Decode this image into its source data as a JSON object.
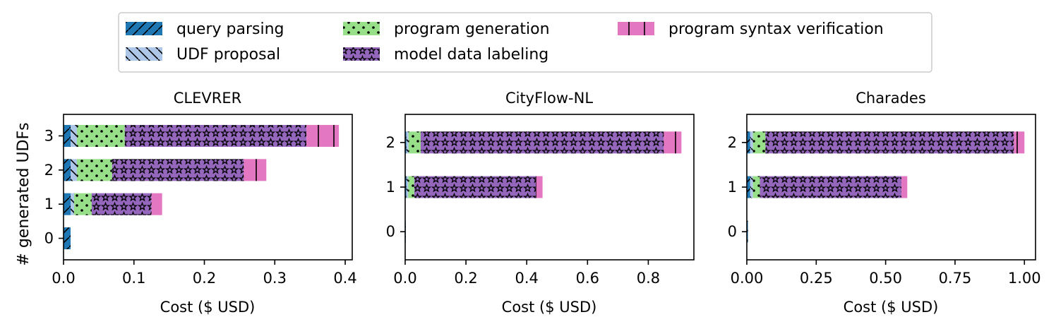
{
  "legend": {
    "items": [
      {
        "key": "query_parsing",
        "label": "query parsing"
      },
      {
        "key": "udf_proposal",
        "label": "UDF proposal"
      },
      {
        "key": "program_generation",
        "label": "program generation"
      },
      {
        "key": "model_data_labeling",
        "label": "model data labeling"
      },
      {
        "key": "program_syntax_verification",
        "label": "program syntax verification"
      }
    ]
  },
  "colors": {
    "query_parsing": "#1f77b4",
    "udf_proposal": "#aec7e8",
    "program_generation": "#98df8a",
    "model_data_labeling": "#9467bd",
    "program_syntax_verification": "#e377c2"
  },
  "patterns": {
    "query_parsing": "slash",
    "udf_proposal": "backslash",
    "program_generation": "dots",
    "model_data_labeling": "stars",
    "program_syntax_verification": "vertical-bar"
  },
  "shared": {
    "ylabel": "# generated UDFs"
  },
  "chart_data": [
    {
      "type": "bar",
      "orientation": "horizontal",
      "stacked": true,
      "title": "CLEVRER",
      "xlabel": "Cost ($ USD)",
      "ylabel": "# generated UDFs",
      "xlim": [
        0,
        0.41
      ],
      "xticks": [
        0,
        0.1,
        0.2,
        0.3,
        0.4
      ],
      "xtick_labels": [
        "0.0",
        "0.1",
        "0.2",
        "0.3",
        "0.4"
      ],
      "categories": [
        "0",
        "1",
        "2",
        "3"
      ],
      "series": [
        {
          "key": "query_parsing",
          "values": [
            0.01,
            0.01,
            0.01,
            0.01
          ]
        },
        {
          "key": "udf_proposal",
          "values": [
            0.0,
            0.005,
            0.009,
            0.009
          ]
        },
        {
          "key": "program_generation",
          "values": [
            0.0,
            0.025,
            0.05,
            0.068
          ]
        },
        {
          "key": "model_data_labeling",
          "values": [
            0.0,
            0.085,
            0.187,
            0.258
          ]
        },
        {
          "key": "program_syntax_verification",
          "values": [
            0.0,
            0.015,
            0.032,
            0.046
          ]
        }
      ]
    },
    {
      "type": "bar",
      "orientation": "horizontal",
      "stacked": true,
      "title": "CityFlow-NL",
      "xlabel": "Cost ($ USD)",
      "ylabel": "",
      "xlim": [
        0,
        0.95
      ],
      "xticks": [
        0,
        0.2,
        0.4,
        0.6,
        0.8
      ],
      "xtick_labels": [
        "0.0",
        "0.2",
        "0.4",
        "0.6",
        "0.8"
      ],
      "categories": [
        "0",
        "1",
        "2"
      ],
      "series": [
        {
          "key": "query_parsing",
          "values": [
            0.002,
            0.004,
            0.004
          ]
        },
        {
          "key": "udf_proposal",
          "values": [
            0.0,
            0.006,
            0.007
          ]
        },
        {
          "key": "program_generation",
          "values": [
            0.0,
            0.02,
            0.04
          ]
        },
        {
          "key": "model_data_labeling",
          "values": [
            0.0,
            0.4,
            0.8
          ]
        },
        {
          "key": "program_syntax_verification",
          "values": [
            0.0,
            0.022,
            0.058
          ]
        }
      ]
    },
    {
      "type": "bar",
      "orientation": "horizontal",
      "stacked": true,
      "title": "Charades",
      "xlabel": "Cost ($ USD)",
      "ylabel": "",
      "xlim": [
        0,
        1.04
      ],
      "xticks": [
        0,
        0.25,
        0.5,
        0.75,
        1.0
      ],
      "xtick_labels": [
        "0.00",
        "0.25",
        "0.50",
        "0.75",
        "1.00"
      ],
      "categories": [
        "0",
        "1",
        "2"
      ],
      "series": [
        {
          "key": "query_parsing",
          "values": [
            0.004,
            0.012,
            0.012
          ]
        },
        {
          "key": "udf_proposal",
          "values": [
            0.0,
            0.01,
            0.01
          ]
        },
        {
          "key": "program_generation",
          "values": [
            0.0,
            0.025,
            0.045
          ]
        },
        {
          "key": "model_data_labeling",
          "values": [
            0.0,
            0.51,
            0.895
          ]
        },
        {
          "key": "program_syntax_verification",
          "values": [
            0.0,
            0.021,
            0.038
          ]
        }
      ]
    }
  ]
}
